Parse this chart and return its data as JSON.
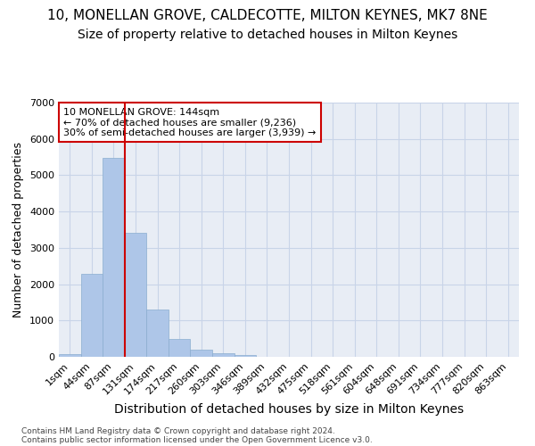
{
  "title_line1": "10, MONELLAN GROVE, CALDECOTTE, MILTON KEYNES, MK7 8NE",
  "title_line2": "Size of property relative to detached houses in Milton Keynes",
  "xlabel": "Distribution of detached houses by size in Milton Keynes",
  "ylabel": "Number of detached properties",
  "footer_line1": "Contains HM Land Registry data © Crown copyright and database right 2024.",
  "footer_line2": "Contains public sector information licensed under the Open Government Licence v3.0.",
  "bar_labels": [
    "1sqm",
    "44sqm",
    "87sqm",
    "131sqm",
    "174sqm",
    "217sqm",
    "260sqm",
    "303sqm",
    "346sqm",
    "389sqm",
    "432sqm",
    "475sqm",
    "518sqm",
    "561sqm",
    "604sqm",
    "648sqm",
    "691sqm",
    "734sqm",
    "777sqm",
    "820sqm",
    "863sqm"
  ],
  "bar_values": [
    75,
    2280,
    5470,
    3420,
    1310,
    490,
    190,
    90,
    50,
    0,
    0,
    0,
    0,
    0,
    0,
    0,
    0,
    0,
    0,
    0,
    0
  ],
  "bar_color": "#aec6e8",
  "bar_edge_color": "#8aadcf",
  "vline_color": "#cc0000",
  "vline_x": 2.5,
  "annotation_text": "10 MONELLAN GROVE: 144sqm\n← 70% of detached houses are smaller (9,236)\n30% of semi-detached houses are larger (3,939) →",
  "annotation_box_color": "white",
  "annotation_box_edge": "#cc0000",
  "ylim": [
    0,
    7000
  ],
  "yticks": [
    0,
    1000,
    2000,
    3000,
    4000,
    5000,
    6000,
    7000
  ],
  "grid_color": "#c8d4e8",
  "background_color": "#e8edf5",
  "title_fontsize": 11,
  "subtitle_fontsize": 10,
  "ylabel_fontsize": 9,
  "xlabel_fontsize": 10,
  "tick_fontsize": 8,
  "annotation_fontsize": 8
}
